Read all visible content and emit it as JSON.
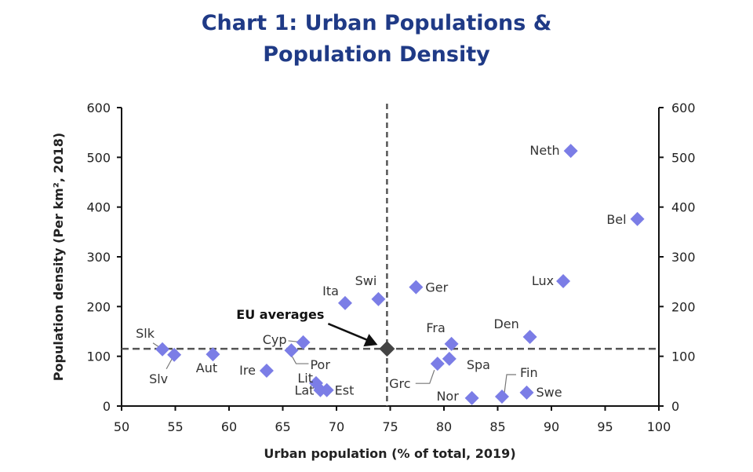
{
  "chart_data": {
    "type": "scatter",
    "title_line1": "Chart 1: Urban Populations &",
    "title_line2": "Population Density",
    "xlabel": "Urban population (% of total, 2019)",
    "ylabel": "Population density (Per km², 2018)",
    "xlim": [
      50,
      100
    ],
    "ylim": [
      0,
      600
    ],
    "xticks": [
      50,
      55,
      60,
      65,
      70,
      75,
      80,
      85,
      90,
      95,
      100
    ],
    "yticks": [
      0,
      100,
      200,
      300,
      400,
      500,
      600
    ],
    "y_right_axis_mirrored": true,
    "grid": false,
    "marker_color": "#7b7de6",
    "average_marker_color": "#444444",
    "points": [
      {
        "label": "Slk",
        "x": 53.8,
        "y": 114
      },
      {
        "label": "Slv",
        "x": 54.9,
        "y": 103
      },
      {
        "label": "Aut",
        "x": 58.5,
        "y": 104
      },
      {
        "label": "Ire",
        "x": 63.5,
        "y": 71
      },
      {
        "label": "Por",
        "x": 65.8,
        "y": 112
      },
      {
        "label": "Cyp",
        "x": 66.9,
        "y": 128
      },
      {
        "label": "Lit",
        "x": 68.1,
        "y": 46
      },
      {
        "label": "Lat",
        "x": 68.5,
        "y": 32
      },
      {
        "label": "Est",
        "x": 69.1,
        "y": 32
      },
      {
        "label": "Ita",
        "x": 70.8,
        "y": 207
      },
      {
        "label": "Swi",
        "x": 73.9,
        "y": 215
      },
      {
        "label": "Ger",
        "x": 77.4,
        "y": 239
      },
      {
        "label": "Grc",
        "x": 79.4,
        "y": 85
      },
      {
        "label": "Spa",
        "x": 80.5,
        "y": 95
      },
      {
        "label": "Fra",
        "x": 80.7,
        "y": 125
      },
      {
        "label": "Nor",
        "x": 82.6,
        "y": 16
      },
      {
        "label": "Fin",
        "x": 85.4,
        "y": 19
      },
      {
        "label": "Swe",
        "x": 87.7,
        "y": 27
      },
      {
        "label": "Den",
        "x": 88.0,
        "y": 139
      },
      {
        "label": "Lux",
        "x": 91.1,
        "y": 251
      },
      {
        "label": "Neth",
        "x": 91.8,
        "y": 513
      },
      {
        "label": "Bel",
        "x": 98.0,
        "y": 376
      }
    ],
    "eu_average": {
      "label": "EU averages",
      "x": 74.7,
      "y": 115
    }
  }
}
